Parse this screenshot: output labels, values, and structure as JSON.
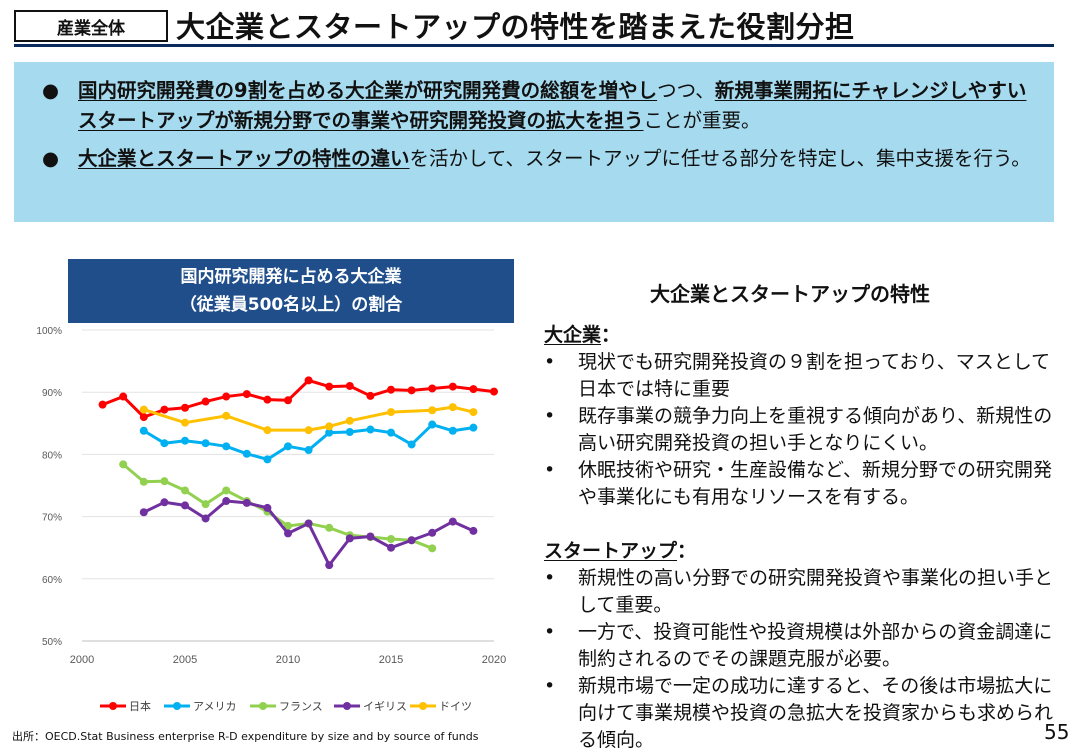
{
  "header": {
    "tag": "産業全体",
    "title": "大企業とスタートアップの特性を踏まえた役割分担"
  },
  "summary": {
    "bullet1": {
      "bold": "国内研究開発費の9割を占める大企業が研究開発費の総額を増やし",
      "mid": "つつ、",
      "bold2": "新規事業開拓にチャレンジしやすいスタートアップが新規分野での事業や研究開発投資の拡大を担う",
      "tail": "ことが重要。"
    },
    "bullet2": {
      "bold": "大企業とスタートアップの特性の違い",
      "tail": "を活かして、スタートアップに任せる部分を特定し、集中支援を行う。"
    }
  },
  "chart_title": {
    "line1": "国内研究開発に占める大企業",
    "line2": "（従業員500名以上）の割合"
  },
  "chart_data": {
    "type": "line",
    "ylim": [
      50,
      100
    ],
    "xlim": [
      2000,
      2020
    ],
    "yticks": [
      "50%",
      "60%",
      "70%",
      "80%",
      "90%",
      "100%"
    ],
    "xticks": [
      "2000",
      "2005",
      "2010",
      "2015",
      "2020"
    ],
    "legend_position": "bottom",
    "series": [
      {
        "name": "日本",
        "color": "#ff0000",
        "x": [
          2001,
          2002,
          2003,
          2004,
          2005,
          2006,
          2007,
          2008,
          2009,
          2010,
          2011,
          2012,
          2013,
          2014,
          2015,
          2016,
          2017,
          2018,
          2019,
          2020
        ],
        "values": [
          88.0,
          89.3,
          86.0,
          87.2,
          87.5,
          88.5,
          89.3,
          89.7,
          88.8,
          88.7,
          91.9,
          90.9,
          91.0,
          89.4,
          90.4,
          90.3,
          90.6,
          90.9,
          90.5,
          90.1
        ]
      },
      {
        "name": "アメリカ",
        "color": "#00b0f0",
        "x": [
          2003,
          2004,
          2005,
          2006,
          2007,
          2008,
          2009,
          2010,
          2011,
          2012,
          2013,
          2014,
          2015,
          2016,
          2017,
          2018,
          2019
        ],
        "values": [
          83.8,
          81.8,
          82.2,
          81.8,
          81.3,
          80.1,
          79.2,
          81.3,
          80.7,
          83.5,
          83.6,
          84.0,
          83.5,
          81.6,
          84.8,
          83.8,
          84.3
        ]
      },
      {
        "name": "フランス",
        "color": "#92d050",
        "x": [
          2002,
          2003,
          2004,
          2005,
          2006,
          2007,
          2008,
          2009,
          2010,
          2011,
          2012,
          2013,
          2014,
          2015,
          2016,
          2017
        ],
        "values": [
          78.4,
          75.6,
          75.7,
          74.2,
          72.0,
          74.2,
          72.5,
          70.8,
          68.5,
          68.9,
          68.2,
          67.0,
          66.7,
          66.4,
          66.2,
          64.9
        ]
      },
      {
        "name": "イギリス",
        "color": "#7030a0",
        "x": [
          2003,
          2004,
          2005,
          2006,
          2007,
          2008,
          2009,
          2010,
          2011,
          2012,
          2013,
          2014,
          2015,
          2016,
          2017,
          2018,
          2019
        ],
        "values": [
          70.7,
          72.3,
          71.8,
          69.7,
          72.5,
          72.2,
          71.4,
          67.3,
          68.9,
          62.2,
          66.5,
          66.8,
          65.0,
          66.2,
          67.4,
          69.2,
          67.7
        ]
      },
      {
        "name": "ドイツ",
        "color": "#ffc000",
        "x": [
          2003,
          2005,
          2007,
          2009,
          2011,
          2012,
          2013,
          2015,
          2017,
          2018,
          2019
        ],
        "values": [
          87.2,
          85.1,
          86.2,
          83.9,
          83.9,
          84.5,
          85.4,
          86.8,
          87.1,
          87.6,
          86.8
        ]
      }
    ]
  },
  "source": "出所：OECD.Stat Business enterprise R-D expenditure by size and by source of funds",
  "page_number": "55",
  "right": {
    "title": "大企業とスタートアップの特性",
    "large": {
      "head": "大企業",
      "colon": "：",
      "items": [
        "現状でも研究開発投資の９割を担っており、マスとして日本では特に重要",
        "既存事業の競争力向上を重視する傾向があり、新規性の高い研究開発投資の担い手となりにくい。",
        "休眠技術や研究・生産設備など、新規分野での研究開発や事業化にも有用なリソースを有する。"
      ]
    },
    "startup": {
      "head": "スタートアップ",
      "colon": "：",
      "items": [
        "新規性の高い分野での研究開発投資や事業化の担い手として重要。",
        "一方で、投資可能性や投資規模は外部からの資金調達に制約されるのでその課題克服が必要。",
        "新規市場で一定の成功に達すると、その後は市場拡大に向けて事業規模や投資の急拡大を投資家からも求められる傾向。"
      ]
    }
  }
}
